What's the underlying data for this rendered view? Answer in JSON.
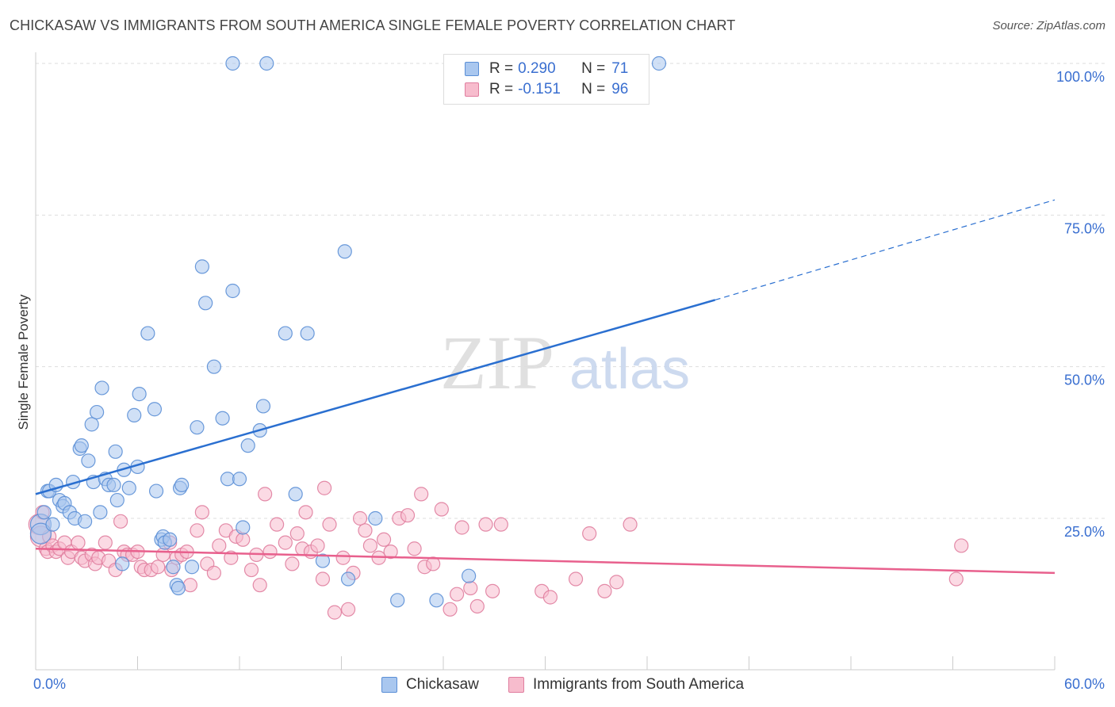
{
  "title": "CHICKASAW VS IMMIGRANTS FROM SOUTH AMERICA SINGLE FEMALE POVERTY CORRELATION CHART",
  "source": "Source: ZipAtlas.com",
  "watermark": {
    "zip": "ZIP",
    "atlas": "atlas"
  },
  "legend": {
    "rows": [
      {
        "r_label": "R =",
        "r_value": "0.290",
        "n_label": "N =",
        "n_value": "71"
      },
      {
        "r_label": "R =",
        "r_value": "-0.151",
        "n_label": "N =",
        "n_value": "96"
      }
    ]
  },
  "bottom_legend": [
    "Chickasaw",
    "Immigrants from South America"
  ],
  "colors": {
    "chickasaw_fill": "#a9c7ef",
    "chickasaw_stroke": "#5b8fd6",
    "chickasaw_line": "#2a6fd0",
    "immigrants_fill": "#f7bccd",
    "immigrants_stroke": "#e07e9f",
    "immigrants_line": "#e8608d",
    "tick_label": "#3a6fd0",
    "grid": "#dddddd"
  },
  "chart_data": {
    "type": "scatter",
    "title": "CHICKASAW VS IMMIGRANTS FROM SOUTH AMERICA SINGLE FEMALE POVERTY CORRELATION CHART",
    "xlabel": "",
    "ylabel": "Single Female Poverty",
    "xlim": [
      0,
      60
    ],
    "ylim": [
      0,
      105
    ],
    "x_tick_labels": [
      "0.0%",
      "60.0%"
    ],
    "y_ticks": [
      25,
      50,
      75,
      100
    ],
    "y_tick_labels": [
      "25.0%",
      "50.0%",
      "75.0%",
      "100.0%"
    ],
    "grid": true,
    "legend_position": "top-center",
    "series": [
      {
        "name": "Chickasaw",
        "r": 0.29,
        "n": 71,
        "trend": {
          "x0": 0,
          "y0": 29,
          "x1": 40,
          "y1": 61,
          "dashed_to_x": 60,
          "dashed_to_y": 77.5
        },
        "points": [
          [
            0.3,
            24
          ],
          [
            0.3,
            22.5
          ],
          [
            0.5,
            26
          ],
          [
            0.7,
            29.5
          ],
          [
            0.8,
            29.5
          ],
          [
            1,
            24
          ],
          [
            1.2,
            30.5
          ],
          [
            1.4,
            28
          ],
          [
            1.6,
            27
          ],
          [
            1.7,
            27.5
          ],
          [
            2,
            26
          ],
          [
            2.2,
            31
          ],
          [
            2.3,
            25
          ],
          [
            2.6,
            36.5
          ],
          [
            2.7,
            37
          ],
          [
            2.9,
            24.5
          ],
          [
            3.1,
            34.5
          ],
          [
            3.3,
            40.5
          ],
          [
            3.4,
            31
          ],
          [
            3.6,
            42.5
          ],
          [
            3.8,
            26
          ],
          [
            3.9,
            46.5
          ],
          [
            4.1,
            31.5
          ],
          [
            4.3,
            30.5
          ],
          [
            4.6,
            30.5
          ],
          [
            4.7,
            36
          ],
          [
            4.8,
            28
          ],
          [
            5.1,
            17.5
          ],
          [
            5.2,
            33
          ],
          [
            5.5,
            30
          ],
          [
            5.8,
            42
          ],
          [
            6,
            33.5
          ],
          [
            6.1,
            45.5
          ],
          [
            6.6,
            55.5
          ],
          [
            7,
            43
          ],
          [
            7.1,
            29.5
          ],
          [
            7.4,
            21.5
          ],
          [
            7.5,
            22
          ],
          [
            7.6,
            21
          ],
          [
            7.9,
            21.5
          ],
          [
            8.1,
            17
          ],
          [
            8.3,
            14
          ],
          [
            8.4,
            13.5
          ],
          [
            8.5,
            30
          ],
          [
            8.6,
            30.5
          ],
          [
            9.2,
            17
          ],
          [
            9.5,
            40
          ],
          [
            9.8,
            66.5
          ],
          [
            10,
            60.5
          ],
          [
            10.5,
            50
          ],
          [
            11,
            41.5
          ],
          [
            11.3,
            31.5
          ],
          [
            11.6,
            62.5
          ],
          [
            12,
            31.5
          ],
          [
            12.2,
            23.5
          ],
          [
            12.5,
            37
          ],
          [
            13.2,
            39.5
          ],
          [
            13.4,
            43.5
          ],
          [
            13.6,
            100
          ],
          [
            14.7,
            55.5
          ],
          [
            15.3,
            29
          ],
          [
            16,
            55.5
          ],
          [
            16.9,
            18
          ],
          [
            18.2,
            69
          ],
          [
            18.4,
            15
          ],
          [
            20,
            25
          ],
          [
            21.3,
            11.5
          ],
          [
            23.6,
            11.5
          ],
          [
            25.5,
            15.5
          ],
          [
            11.6,
            100
          ],
          [
            36.7,
            100
          ]
        ]
      },
      {
        "name": "Immigrants from South America",
        "r": -0.151,
        "n": 96,
        "trend": {
          "x0": 0,
          "y0": 20,
          "x1": 60,
          "y1": 16
        },
        "points": [
          [
            0.2,
            24
          ],
          [
            0.3,
            22
          ],
          [
            0.4,
            26
          ],
          [
            0.6,
            20
          ],
          [
            0.7,
            19.5
          ],
          [
            0.8,
            22
          ],
          [
            1,
            20.5
          ],
          [
            1.2,
            19.5
          ],
          [
            1.4,
            20
          ],
          [
            1.7,
            21
          ],
          [
            1.9,
            18.5
          ],
          [
            2.1,
            19.5
          ],
          [
            2.5,
            21
          ],
          [
            2.7,
            18.5
          ],
          [
            2.9,
            18
          ],
          [
            3.3,
            19
          ],
          [
            3.5,
            17.5
          ],
          [
            3.7,
            18.5
          ],
          [
            4.1,
            21
          ],
          [
            4.3,
            18
          ],
          [
            4.7,
            16.5
          ],
          [
            5,
            24.5
          ],
          [
            5.2,
            19.5
          ],
          [
            5.4,
            19
          ],
          [
            5.7,
            19
          ],
          [
            6,
            19.5
          ],
          [
            6.2,
            17
          ],
          [
            6.4,
            16.5
          ],
          [
            6.8,
            16.5
          ],
          [
            7.2,
            17
          ],
          [
            7.5,
            19
          ],
          [
            7.9,
            21
          ],
          [
            8,
            16.5
          ],
          [
            8.3,
            18.5
          ],
          [
            8.6,
            19
          ],
          [
            8.9,
            19.5
          ],
          [
            9.1,
            14
          ],
          [
            9.5,
            23
          ],
          [
            9.8,
            26
          ],
          [
            10.1,
            17.5
          ],
          [
            10.5,
            16
          ],
          [
            10.8,
            20.5
          ],
          [
            11.2,
            23
          ],
          [
            11.5,
            18.5
          ],
          [
            11.8,
            22
          ],
          [
            12.2,
            21.5
          ],
          [
            12.7,
            16.5
          ],
          [
            13,
            19
          ],
          [
            13.2,
            14
          ],
          [
            13.5,
            29
          ],
          [
            13.8,
            19.5
          ],
          [
            14.2,
            24
          ],
          [
            14.7,
            21
          ],
          [
            15.1,
            17.5
          ],
          [
            15.4,
            22.5
          ],
          [
            15.7,
            20
          ],
          [
            15.9,
            26
          ],
          [
            16.2,
            19.5
          ],
          [
            16.6,
            20.5
          ],
          [
            16.9,
            15
          ],
          [
            17.3,
            24
          ],
          [
            17.6,
            9.5
          ],
          [
            18.1,
            18.5
          ],
          [
            18.4,
            10
          ],
          [
            18.7,
            16
          ],
          [
            19.1,
            25
          ],
          [
            19.4,
            23
          ],
          [
            19.7,
            20.5
          ],
          [
            20.2,
            18.5
          ],
          [
            20.5,
            21.5
          ],
          [
            20.9,
            19.5
          ],
          [
            21.4,
            25
          ],
          [
            21.9,
            25.5
          ],
          [
            22.3,
            20
          ],
          [
            22.7,
            29
          ],
          [
            22.9,
            17
          ],
          [
            23.4,
            17.5
          ],
          [
            23.9,
            26.5
          ],
          [
            24.4,
            10
          ],
          [
            24.8,
            12.5
          ],
          [
            25.1,
            23.5
          ],
          [
            25.6,
            13.5
          ],
          [
            26,
            10.5
          ],
          [
            26.5,
            24
          ],
          [
            26.9,
            13
          ],
          [
            27.4,
            24
          ],
          [
            29.8,
            13
          ],
          [
            30.3,
            12
          ],
          [
            31.8,
            15
          ],
          [
            32.6,
            22.5
          ],
          [
            33.5,
            13
          ],
          [
            34.2,
            14.5
          ],
          [
            17,
            30
          ],
          [
            35,
            24
          ],
          [
            54.5,
            20.5
          ],
          [
            54.2,
            15
          ]
        ]
      }
    ]
  }
}
